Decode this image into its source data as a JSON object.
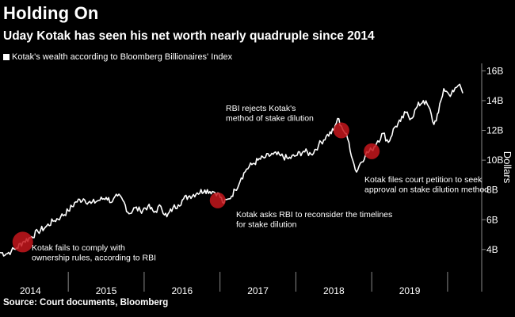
{
  "header": {
    "title": "Holding On",
    "subtitle": "Uday Kotak has seen his net worth nearly quadruple since 2014",
    "legend": "Kotak's wealth according to Bloomberg Billionaires' Index"
  },
  "footer": {
    "source": "Source: Court documents, Bloomberg"
  },
  "colors": {
    "background": "#000000",
    "line": "#ffffff",
    "marker": "#c4161c",
    "axis": "#888888"
  },
  "chart_data": {
    "type": "line",
    "title": "Holding On",
    "subtitle": "Uday Kotak has seen his net worth nearly quadruple since 2014",
    "ylabel": "Dollars",
    "xlabel": "",
    "xlim": [
      2013.6,
      2019.95
    ],
    "ylim": [
      2.5,
      16.5
    ],
    "y_ticks": [
      {
        "value": 4,
        "label": "4B"
      },
      {
        "value": 6,
        "label": "6B"
      },
      {
        "value": 8,
        "label": "8B"
      },
      {
        "value": 10,
        "label": "10B"
      },
      {
        "value": 12,
        "label": "12B"
      },
      {
        "value": 14,
        "label": "14B"
      },
      {
        "value": 16,
        "label": "16B"
      }
    ],
    "x_ticks": [
      {
        "value": 2014,
        "label": "2014"
      },
      {
        "value": 2015,
        "label": "2015"
      },
      {
        "value": 2016,
        "label": "2016"
      },
      {
        "value": 2017,
        "label": "2017"
      },
      {
        "value": 2018,
        "label": "2018"
      },
      {
        "value": 2019,
        "label": "2019"
      }
    ],
    "year_separators": [
      2014.5,
      2015.5,
      2016.5,
      2017.5,
      2018.5,
      2019.5
    ],
    "series": [
      {
        "name": "Kotak's wealth according to Bloomberg Billionaires' Index",
        "x": [
          2013.6,
          2013.68,
          2013.75,
          2013.82,
          2013.9,
          2014.0,
          2014.1,
          2014.2,
          2014.3,
          2014.4,
          2014.5,
          2014.6,
          2014.7,
          2014.8,
          2014.9,
          2015.0,
          2015.08,
          2015.15,
          2015.22,
          2015.3,
          2015.38,
          2015.45,
          2015.55,
          2015.63,
          2015.72,
          2015.8,
          2015.88,
          2015.95,
          2016.02,
          2016.1,
          2016.2,
          2016.3,
          2016.4,
          2016.47,
          2016.55,
          2016.62,
          2016.7,
          2016.78,
          2016.85,
          2016.92,
          2017.0,
          2017.1,
          2017.2,
          2017.3,
          2017.4,
          2017.5,
          2017.6,
          2017.7,
          2017.8,
          2017.9,
          2018.0,
          2018.05,
          2018.1,
          2018.15,
          2018.2,
          2018.25,
          2018.3,
          2018.35,
          2018.42,
          2018.5,
          2018.58,
          2018.65,
          2018.72,
          2018.8,
          2018.88,
          2018.95,
          2019.02,
          2019.1,
          2019.18,
          2019.25,
          2019.32,
          2019.38,
          2019.45,
          2019.52,
          2019.58,
          2019.62,
          2019.66,
          2019.7
        ],
        "values": [
          3.8,
          3.7,
          3.9,
          4.1,
          4.5,
          4.8,
          5.2,
          5.5,
          5.9,
          6.2,
          6.6,
          7.2,
          7.4,
          7.1,
          7.3,
          7.5,
          7.2,
          7.6,
          7.3,
          6.4,
          6.8,
          6.6,
          6.9,
          6.5,
          6.9,
          6.2,
          6.8,
          7.0,
          7.4,
          7.6,
          7.8,
          8.0,
          7.9,
          7.8,
          7.1,
          7.4,
          8.0,
          8.8,
          9.4,
          9.7,
          10.0,
          10.2,
          10.4,
          10.3,
          10.1,
          10.3,
          10.6,
          10.4,
          11.0,
          11.6,
          12.0,
          12.8,
          12.3,
          11.8,
          11.2,
          10.0,
          9.2,
          9.8,
          10.4,
          10.7,
          11.3,
          11.8,
          11.2,
          12.2,
          12.6,
          13.2,
          12.8,
          13.6,
          14.0,
          13.6,
          12.4,
          13.2,
          14.8,
          14.4,
          14.6,
          14.9,
          15.1,
          14.5
        ]
      }
    ],
    "annotations": [
      {
        "x": 2013.9,
        "y": 4.5,
        "lines": [
          "Kotak fails to comply with",
          "ownership rules, according to RBI"
        ]
      },
      {
        "x": 2016.47,
        "y": 7.3,
        "lines": [
          "Kotak asks RBI to reconsider the timelines",
          "for stake dilution"
        ]
      },
      {
        "x": 2018.1,
        "y": 12.0,
        "lines": [
          "RBI rejects Kotak's",
          "method of stake dilution"
        ]
      },
      {
        "x": 2018.5,
        "y": 10.6,
        "lines": [
          "Kotak files court petition to seek",
          "approval on stake dilution method"
        ]
      }
    ]
  }
}
